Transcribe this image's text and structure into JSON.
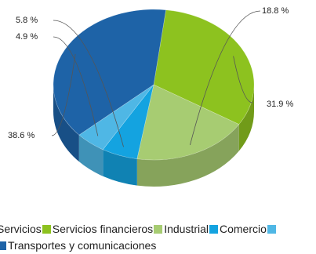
{
  "chart_data": {
    "type": "pie",
    "title": "",
    "three_d": true,
    "categories": [
      "Servicios",
      "Servicios financieros",
      "Industrial",
      "Comercio",
      "Transportes y comunicaciones"
    ],
    "values": [
      31.9,
      18.8,
      5.8,
      4.9,
      38.6
    ],
    "value_labels": [
      "31.9 %",
      "18.8 %",
      "5.8 %",
      "4.9 %",
      "38.6 %"
    ],
    "colors": [
      "#8dc21f",
      "#a7cc72",
      "#14a3e0",
      "#4fb7e5",
      "#1e63a7"
    ],
    "legend_position": "bottom"
  }
}
